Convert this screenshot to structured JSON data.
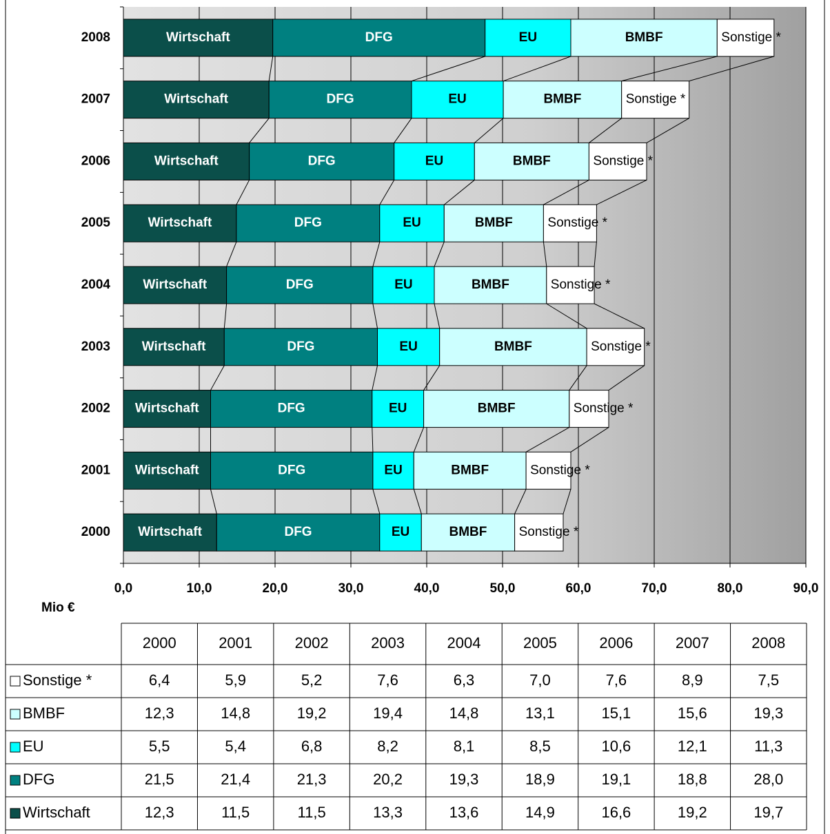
{
  "chart_data": {
    "type": "bar",
    "orientation": "horizontal",
    "stacked": true,
    "categories": [
      "2000",
      "2001",
      "2002",
      "2003",
      "2004",
      "2005",
      "2006",
      "2007",
      "2008"
    ],
    "series": [
      {
        "name": "Wirtschaft",
        "color": "#0b4f4a",
        "values": [
          12.3,
          11.5,
          11.5,
          13.3,
          13.6,
          14.9,
          16.6,
          19.2,
          19.7
        ],
        "value_labels": [
          "12,3",
          "11,5",
          "11,5",
          "13,3",
          "13,6",
          "14,9",
          "16,6",
          "19,2",
          "19,7"
        ]
      },
      {
        "name": "DFG",
        "color": "#008080",
        "values": [
          21.5,
          21.4,
          21.3,
          20.2,
          19.3,
          18.9,
          19.1,
          18.8,
          28.0
        ],
        "value_labels": [
          "21,5",
          "21,4",
          "21,3",
          "20,2",
          "19,3",
          "18,9",
          "19,1",
          "18,8",
          "28,0"
        ]
      },
      {
        "name": "EU",
        "color": "#00ffff",
        "values": [
          5.5,
          5.4,
          6.8,
          8.2,
          8.1,
          8.5,
          10.6,
          12.1,
          11.3
        ],
        "value_labels": [
          "5,5",
          "5,4",
          "6,8",
          "8,2",
          "8,1",
          "8,5",
          "10,6",
          "12,1",
          "11,3"
        ]
      },
      {
        "name": "BMBF",
        "color": "#ccffff",
        "values": [
          12.3,
          14.8,
          19.2,
          19.4,
          14.8,
          13.1,
          15.1,
          15.6,
          19.3
        ],
        "value_labels": [
          "12,3",
          "14,8",
          "19,2",
          "19,4",
          "14,8",
          "13,1",
          "15,1",
          "15,6",
          "19,3"
        ]
      },
      {
        "name": "Sonstige *",
        "color": "#ffffff",
        "values": [
          6.4,
          5.9,
          5.2,
          7.6,
          6.3,
          7.0,
          7.6,
          8.9,
          7.5
        ],
        "value_labels": [
          "6,4",
          "5,9",
          "5,2",
          "7,6",
          "6,3",
          "7,0",
          "7,6",
          "8,9",
          "7,5"
        ]
      }
    ],
    "xlim": [
      0,
      90
    ],
    "xticks": [
      {
        "value": 0,
        "label": "0,0"
      },
      {
        "value": 10,
        "label": "10,0"
      },
      {
        "value": 20,
        "label": "20,0"
      },
      {
        "value": 30,
        "label": "30,0"
      },
      {
        "value": 40,
        "label": "40,0"
      },
      {
        "value": 50,
        "label": "50,0"
      },
      {
        "value": 60,
        "label": "60,0"
      },
      {
        "value": 70,
        "label": "70,0"
      },
      {
        "value": 80,
        "label": "80,0"
      },
      {
        "value": 90,
        "label": "90,0"
      }
    ],
    "xlabel": "Mio €",
    "grid": true
  }
}
